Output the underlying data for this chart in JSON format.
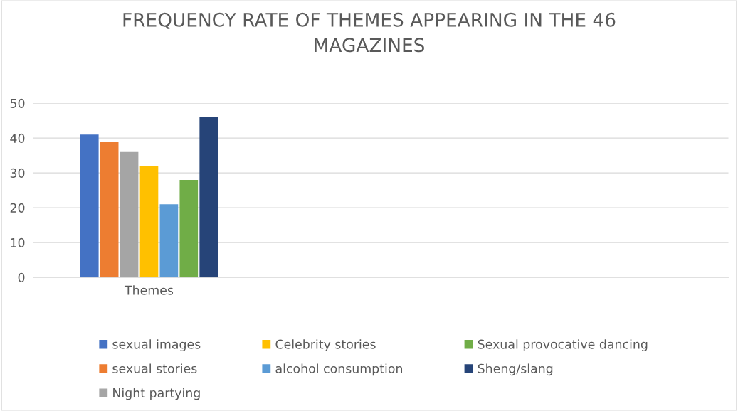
{
  "chart_data": {
    "type": "bar",
    "title": "FREQUENCY RATE OF THEMES APPEARING IN THE 46\nMAGAZINES",
    "categories": [
      "Themes",
      null,
      null
    ],
    "series": [
      {
        "name": "sexual images",
        "color": "#4472c4",
        "values": [
          41,
          null,
          null
        ]
      },
      {
        "name": "sexual stories",
        "color": "#ed7d31",
        "values": [
          39,
          null,
          null
        ]
      },
      {
        "name": "Night partying",
        "color": "#a5a5a5",
        "values": [
          36,
          null,
          null
        ]
      },
      {
        "name": "Celebrity stories",
        "color": "#ffc000",
        "values": [
          32,
          null,
          null
        ]
      },
      {
        "name": "alcohol consumption",
        "color": "#5b9bd5",
        "values": [
          21,
          null,
          null
        ]
      },
      {
        "name": "Sexual provocative dancing",
        "color": "#70ad47",
        "values": [
          28,
          null,
          null
        ]
      },
      {
        "name": "Sheng/slang",
        "color": "#264478",
        "values": [
          46,
          null,
          null
        ]
      }
    ],
    "ylim": [
      0,
      50
    ],
    "yticks": [
      0,
      10,
      20,
      30,
      40,
      50
    ],
    "grid": "y",
    "legend": "bottom"
  }
}
